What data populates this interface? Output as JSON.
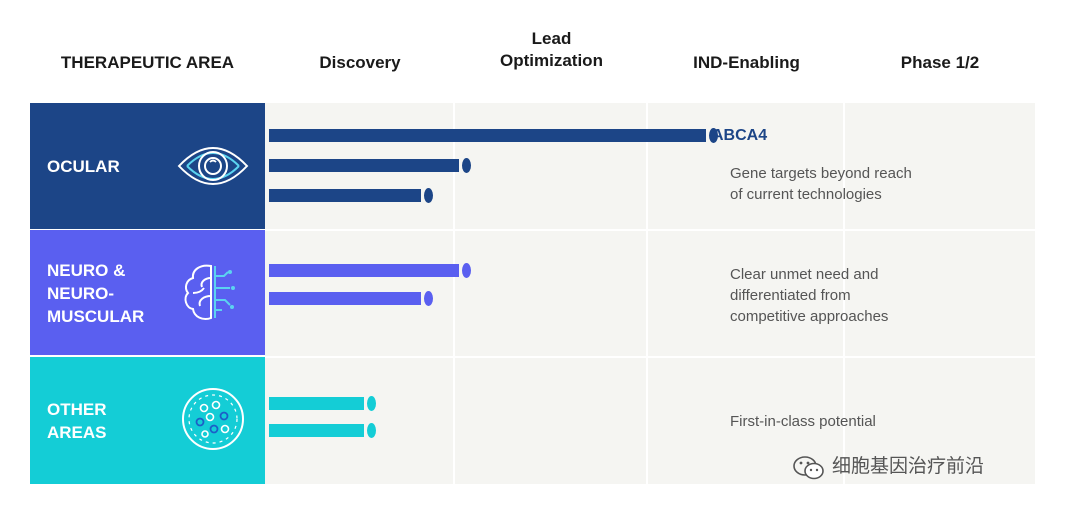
{
  "chart_data": {
    "type": "table",
    "header_area": "THERAPEUTIC AREA",
    "stages": [
      "Discovery",
      "Lead\nOptimization",
      "IND-Enabling",
      "Phase 1/2"
    ],
    "rows": [
      {
        "area": "OCULAR",
        "icon": "eye-icon",
        "color": "#1c4587",
        "description": "Gene targets beyond reach\nof current technologies",
        "programs": [
          {
            "label": "ABCA4",
            "progress": 2.3
          },
          {
            "label": "",
            "progress": 1.0
          },
          {
            "label": "",
            "progress": 0.8
          }
        ]
      },
      {
        "area": "NEURO &\nNEURO-\nMUSCULAR",
        "icon": "brain-icon",
        "color": "#5a5ff0",
        "description": "Clear unmet need and\ndifferentiated from\ncompetitive approaches",
        "programs": [
          {
            "label": "",
            "progress": 1.0
          },
          {
            "label": "",
            "progress": 0.8
          }
        ]
      },
      {
        "area": "OTHER\nAREAS",
        "icon": "cells-icon",
        "color": "#14cdd6",
        "description": "First-in-class potential",
        "programs": [
          {
            "label": "",
            "progress": 0.5
          },
          {
            "label": "",
            "progress": 0.5
          }
        ]
      }
    ]
  },
  "colors": {
    "column_bg": "#f5f5f2",
    "column_bg_alt": "#ffffff"
  },
  "watermark": {
    "text": "细胞基因治疗前沿",
    "icon": "wechat-icon"
  }
}
